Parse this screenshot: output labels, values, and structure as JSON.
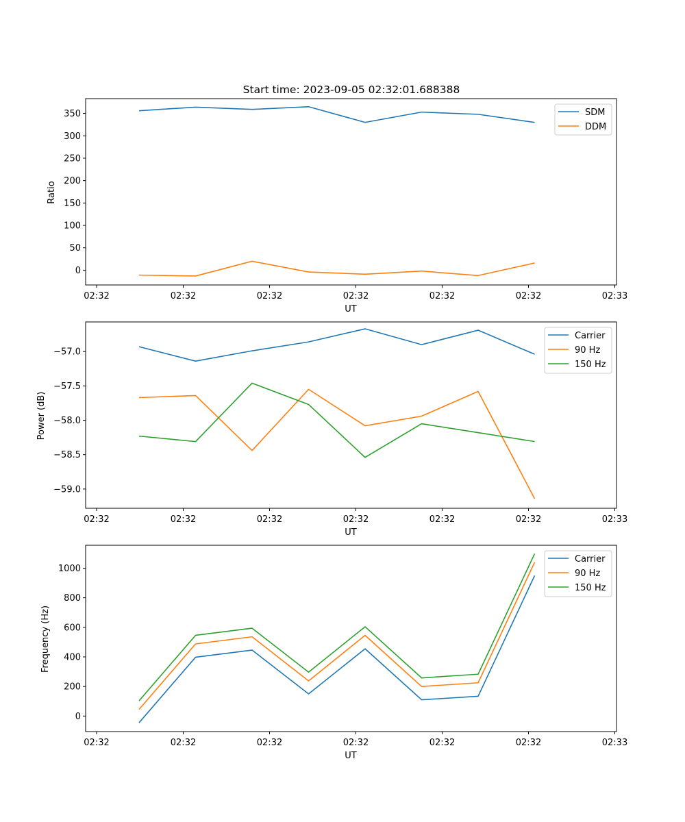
{
  "chart_data": [
    {
      "type": "line",
      "title": "Start time: 2023-09-05 02:32:01.688388",
      "xlabel": "UT",
      "ylabel": "Ratio",
      "ylim": [
        -33,
        383
      ],
      "yticks": [
        0,
        50,
        100,
        150,
        200,
        250,
        300,
        350
      ],
      "xticks": [
        "02:32",
        "02:32",
        "02:32",
        "02:32",
        "02:32",
        "02:32",
        "02:33"
      ],
      "series": [
        {
          "name": "SDM",
          "color": "#1f77b4",
          "values": [
            356,
            364,
            359,
            365,
            330,
            353,
            348,
            330
          ]
        },
        {
          "name": "DDM",
          "color": "#ff7f0e",
          "values": [
            -11,
            -13,
            20,
            -4,
            -9,
            -2,
            -12,
            16
          ]
        }
      ]
    },
    {
      "type": "line",
      "title": "",
      "xlabel": "UT",
      "ylabel": "Power (dB)",
      "ylim": [
        -59.28,
        -56.57
      ],
      "yticks": [
        -59.0,
        -58.5,
        -58.0,
        -57.5,
        -57.0
      ],
      "ytick_labels": [
        "−59.0",
        "−58.5",
        "−58.0",
        "−57.5",
        "−57.0"
      ],
      "xticks": [
        "02:32",
        "02:32",
        "02:32",
        "02:32",
        "02:32",
        "02:32",
        "02:33"
      ],
      "series": [
        {
          "name": "Carrier",
          "color": "#1f77b4",
          "values": [
            -56.93,
            -57.14,
            -56.99,
            -56.86,
            -56.67,
            -56.9,
            -56.69,
            -57.04
          ]
        },
        {
          "name": "90 Hz",
          "color": "#ff7f0e",
          "values": [
            -57.67,
            -57.64,
            -58.44,
            -57.55,
            -58.08,
            -57.94,
            -57.58,
            -59.14
          ]
        },
        {
          "name": "150 Hz",
          "color": "#2ca02c",
          "values": [
            -58.23,
            -58.31,
            -57.46,
            -57.77,
            -58.54,
            -58.05,
            -58.18,
            -58.31
          ]
        }
      ]
    },
    {
      "type": "line",
      "title": "",
      "xlabel": "UT",
      "ylabel": "Frequency (Hz)",
      "ylim": [
        -105,
        1155
      ],
      "yticks": [
        0,
        200,
        400,
        600,
        800,
        1000
      ],
      "xticks": [
        "02:32",
        "02:32",
        "02:32",
        "02:32",
        "02:32",
        "02:32",
        "02:33"
      ],
      "series": [
        {
          "name": "Carrier",
          "color": "#1f77b4",
          "values": [
            -45,
            398,
            446,
            150,
            455,
            110,
            134,
            950
          ]
        },
        {
          "name": "90 Hz",
          "color": "#ff7f0e",
          "values": [
            45,
            488,
            536,
            238,
            546,
            200,
            225,
            1040
          ]
        },
        {
          "name": "150 Hz",
          "color": "#2ca02c",
          "values": [
            103,
            546,
            594,
            297,
            604,
            258,
            283,
            1098
          ]
        }
      ]
    }
  ]
}
